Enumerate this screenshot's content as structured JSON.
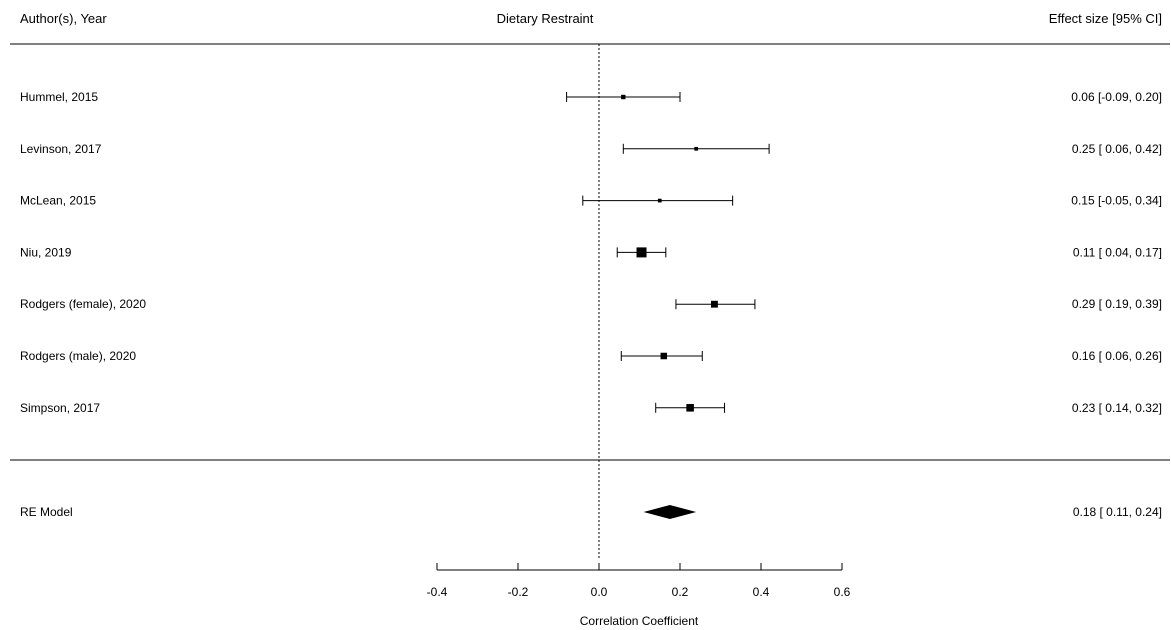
{
  "chart_data": {
    "type": "forest",
    "header": {
      "left": "Author(s), Year",
      "center": "Dietary Restraint",
      "right": "Effect size [95% CI]"
    },
    "xlabel": "Correlation Coefficient",
    "xlim": [
      -0.4,
      0.6
    ],
    "xticks": [
      {
        "value": -0.4,
        "label": "-0.4"
      },
      {
        "value": -0.2,
        "label": "-0.2"
      },
      {
        "value": 0.0,
        "label": "0.0"
      },
      {
        "value": 0.2,
        "label": "0.2"
      },
      {
        "value": 0.4,
        "label": "0.4"
      },
      {
        "value": 0.6,
        "label": "0.6"
      }
    ],
    "reference_line": 0.0,
    "studies": [
      {
        "label": "Hummel,   2015",
        "estimate": 0.06,
        "lower": -0.08,
        "upper": 0.2,
        "ci_text": "0.06 [-0.09, 0.20]",
        "weight": 0.2
      },
      {
        "label": "Levinson,   2017",
        "estimate": 0.24,
        "lower": 0.06,
        "upper": 0.42,
        "ci_text": "0.25 [ 0.06, 0.42]",
        "weight": 0.1
      },
      {
        "label": "McLean,   2015",
        "estimate": 0.15,
        "lower": -0.04,
        "upper": 0.33,
        "ci_text": "0.15 [-0.05, 0.34]",
        "weight": 0.1
      },
      {
        "label": "Niu,   2019",
        "estimate": 0.105,
        "lower": 0.045,
        "upper": 0.165,
        "ci_text": "0.11 [ 0.04, 0.17]",
        "weight": 1.0
      },
      {
        "label": "Rodgers (female),   2020",
        "estimate": 0.285,
        "lower": 0.19,
        "upper": 0.385,
        "ci_text": "0.29 [ 0.19, 0.39]",
        "weight": 0.55
      },
      {
        "label": "Rodgers (male),   2020",
        "estimate": 0.16,
        "lower": 0.055,
        "upper": 0.255,
        "ci_text": "0.16 [ 0.06, 0.26]",
        "weight": 0.5
      },
      {
        "label": "Simpson,   2017",
        "estimate": 0.225,
        "lower": 0.14,
        "upper": 0.31,
        "ci_text": "0.23 [ 0.14, 0.32]",
        "weight": 0.65
      }
    ],
    "summary": {
      "label": "RE Model",
      "estimate": 0.175,
      "lower": 0.11,
      "upper": 0.24,
      "ci_text": "0.18 [ 0.11, 0.24]"
    }
  }
}
